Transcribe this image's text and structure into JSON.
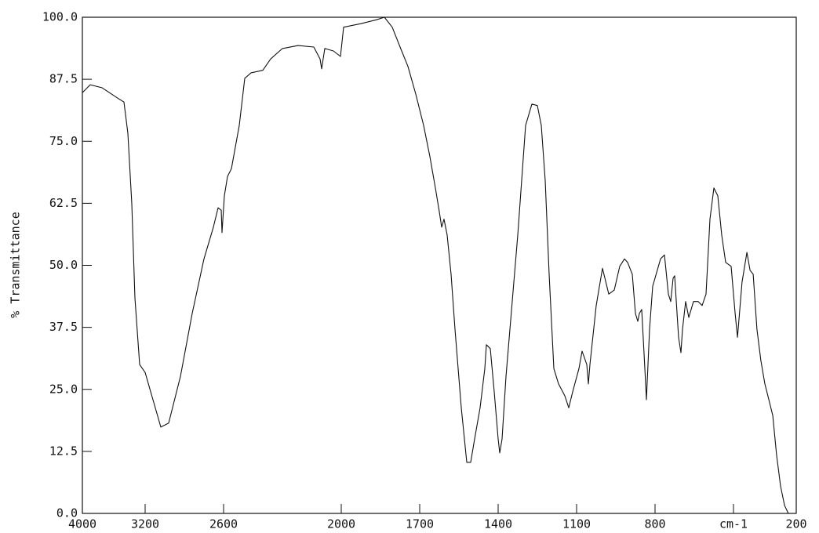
{
  "chart_data": {
    "type": "line",
    "ylabel": "% Transmittance",
    "color": "#111111",
    "xlim": [
      4000,
      200
    ],
    "xticks": [
      4000,
      3200,
      2600,
      2000,
      1700,
      1400,
      1100,
      800,
      {
        "value": 500,
        "label": "cm-1"
      },
      200
    ],
    "ylim": [
      0,
      100
    ],
    "yticks": [
      {
        "value": 0,
        "label": "0.0"
      },
      12.5,
      {
        "value": 25,
        "label": "25.0"
      },
      37.5,
      {
        "value": 50,
        "label": "50.0"
      },
      62.5,
      {
        "value": 75,
        "label": "75.0"
      },
      87.5,
      {
        "value": 100,
        "label": "100.0"
      }
    ],
    "x": [
      4000,
      3900,
      3750,
      3550,
      3470,
      3420,
      3370,
      3330,
      3270,
      3200,
      3140,
      3080,
      3020,
      2930,
      2840,
      2750,
      2678,
      2642,
      2618,
      2612,
      2596,
      2580,
      2560,
      2520,
      2492,
      2460,
      2400,
      2360,
      2300,
      2220,
      2140,
      2108,
      2100,
      2084,
      2040,
      2004,
      1991,
      1925,
      1865,
      1835,
      1805,
      1775,
      1745,
      1715,
      1685,
      1661,
      1640,
      1625,
      1616,
      1607,
      1595,
      1580,
      1565,
      1541,
      1520,
      1505,
      1490,
      1469,
      1451,
      1445,
      1430,
      1415,
      1400,
      1394,
      1385,
      1370,
      1325,
      1295,
      1271,
      1250,
      1235,
      1220,
      1205,
      1187,
      1169,
      1145,
      1130,
      1115,
      1091,
      1079,
      1061,
      1055,
      1049,
      1025,
      1001,
      977,
      956,
      935,
      917,
      905,
      887,
      875,
      866,
      860,
      851,
      839,
      833,
      821,
      809,
      779,
      764,
      749,
      740,
      731,
      725,
      710,
      701,
      695,
      683,
      671,
      653,
      635,
      620,
      605,
      590,
      575,
      560,
      545,
      530,
      509,
      492,
      481,
      459,
      436,
      421,
      406,
      388,
      369,
      350,
      331,
      312,
      294,
      275,
      256,
      238
    ],
    "values": [
      84.8,
      86.4,
      85.8,
      83.7,
      82.9,
      76.6,
      62.4,
      43.4,
      30.0,
      28.4,
      22.9,
      17.4,
      18.2,
      27.6,
      40.3,
      51.3,
      57.7,
      61.6,
      61.1,
      56.6,
      64.0,
      67.9,
      69.5,
      78.2,
      87.7,
      88.8,
      89.3,
      91.6,
      93.7,
      94.3,
      94.0,
      91.6,
      89.6,
      93.7,
      93.2,
      92.1,
      98.0,
      98.7,
      99.5,
      100.0,
      98.0,
      94.0,
      90.1,
      84.5,
      78.2,
      71.9,
      65.6,
      60.8,
      57.7,
      59.3,
      56.1,
      48.2,
      37.1,
      21.3,
      10.3,
      10.3,
      15.0,
      21.3,
      29.2,
      34.0,
      33.2,
      24.5,
      15.0,
      12.2,
      15.0,
      27.6,
      56.1,
      78.2,
      82.5,
      82.2,
      78.2,
      67.1,
      48.2,
      29.2,
      26.1,
      23.7,
      21.3,
      24.5,
      29.2,
      32.7,
      30.0,
      26.1,
      30.0,
      41.9,
      49.4,
      44.2,
      45.0,
      49.8,
      51.3,
      50.6,
      48.2,
      40.3,
      38.7,
      40.3,
      41.1,
      29.2,
      22.9,
      37.1,
      45.8,
      51.3,
      52.1,
      44.2,
      42.7,
      47.4,
      47.9,
      35.5,
      32.4,
      37.1,
      42.7,
      39.5,
      42.7,
      42.7,
      41.9,
      44.2,
      59.3,
      65.6,
      64.0,
      56.1,
      50.6,
      49.8,
      40.3,
      35.5,
      46.6,
      52.6,
      49.0,
      48.2,
      37.1,
      30.8,
      26.1,
      22.9,
      19.7,
      11.8,
      5.5,
      1.6,
      0
    ]
  }
}
